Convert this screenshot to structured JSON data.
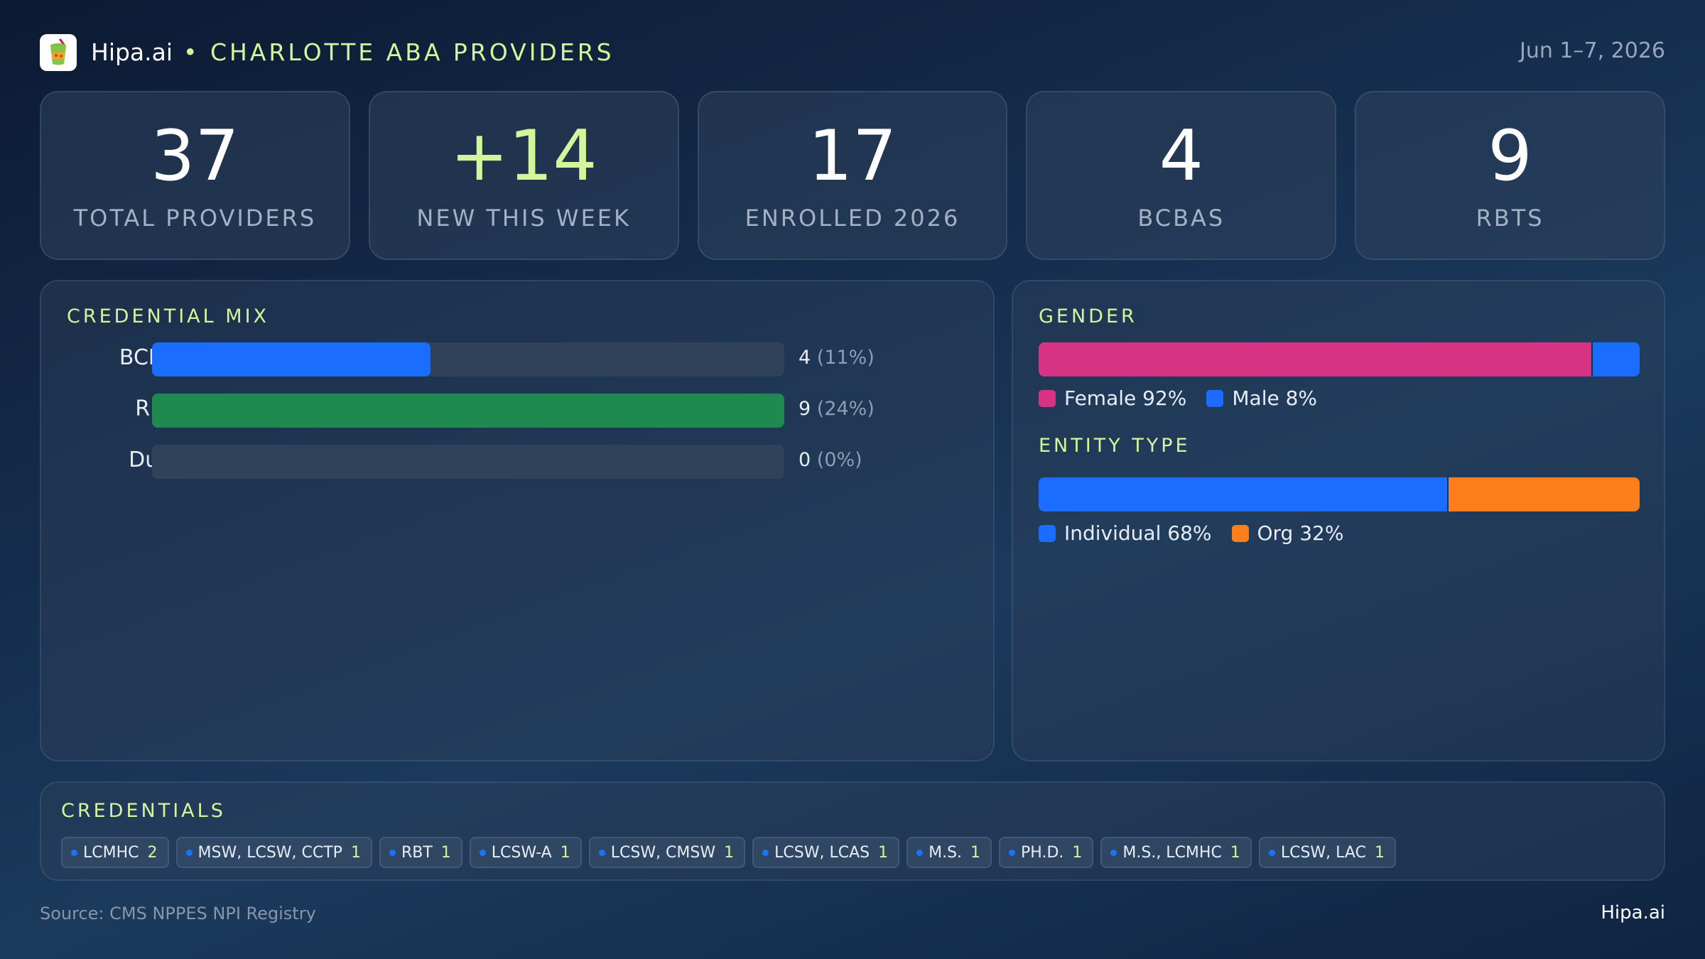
{
  "header": {
    "brand": "Hipa.ai",
    "separator": "•",
    "title": "CHARLOTTE ABA PROVIDERS",
    "date_range": "Jun 1–7, 2026",
    "logo_icon": "drink-cup-icon"
  },
  "stats": [
    {
      "value": "37",
      "label": "TOTAL PROVIDERS"
    },
    {
      "value": "+14",
      "label": "NEW THIS WEEK"
    },
    {
      "value": "17",
      "label": "ENROLLED 2026"
    },
    {
      "value": "4",
      "label": "BCBAS"
    },
    {
      "value": "9",
      "label": "RBTS"
    }
  ],
  "credential_mix": {
    "title": "CREDENTIAL MIX",
    "rows": [
      {
        "label": "BCBA",
        "count": "4",
        "pct": "(11%)",
        "fraction": 0.44,
        "color": "#1a6dff"
      },
      {
        "label": "RBT",
        "count": "9",
        "pct": "(24%)",
        "fraction": 1.0,
        "color": "#1e8a50"
      },
      {
        "label": "Dual",
        "count": "0",
        "pct": "(0%)",
        "fraction": 0.0,
        "color": "#1a6dff"
      }
    ]
  },
  "gender": {
    "title": "GENDER",
    "segments": [
      {
        "label": "Female 92%",
        "fraction": 0.92,
        "color": "#d63384"
      },
      {
        "label": "Male 8%",
        "fraction": 0.08,
        "color": "#1a6dff"
      }
    ]
  },
  "entity_type": {
    "title": "ENTITY TYPE",
    "segments": [
      {
        "label": "Individual 68%",
        "fraction": 0.68,
        "color": "#1a6dff"
      },
      {
        "label": "Org 32%",
        "fraction": 0.32,
        "color": "#fb7e1a"
      }
    ]
  },
  "credentials": {
    "title": "CREDENTIALS",
    "items": [
      {
        "label": "LCMHC",
        "count": "2"
      },
      {
        "label": "MSW, LCSW, CCTP",
        "count": "1"
      },
      {
        "label": "RBT",
        "count": "1"
      },
      {
        "label": "LCSW-A",
        "count": "1"
      },
      {
        "label": "LCSW, CMSW",
        "count": "1"
      },
      {
        "label": "LCSW, LCAS",
        "count": "1"
      },
      {
        "label": "M.S.",
        "count": "1"
      },
      {
        "label": "PH.D.",
        "count": "1"
      },
      {
        "label": "M.S., LCMHC",
        "count": "1"
      },
      {
        "label": "LCSW, LAC",
        "count": "1"
      }
    ]
  },
  "footer": {
    "source": "Source: CMS NPPES NPI Registry",
    "brand": "Hipa.ai"
  }
}
